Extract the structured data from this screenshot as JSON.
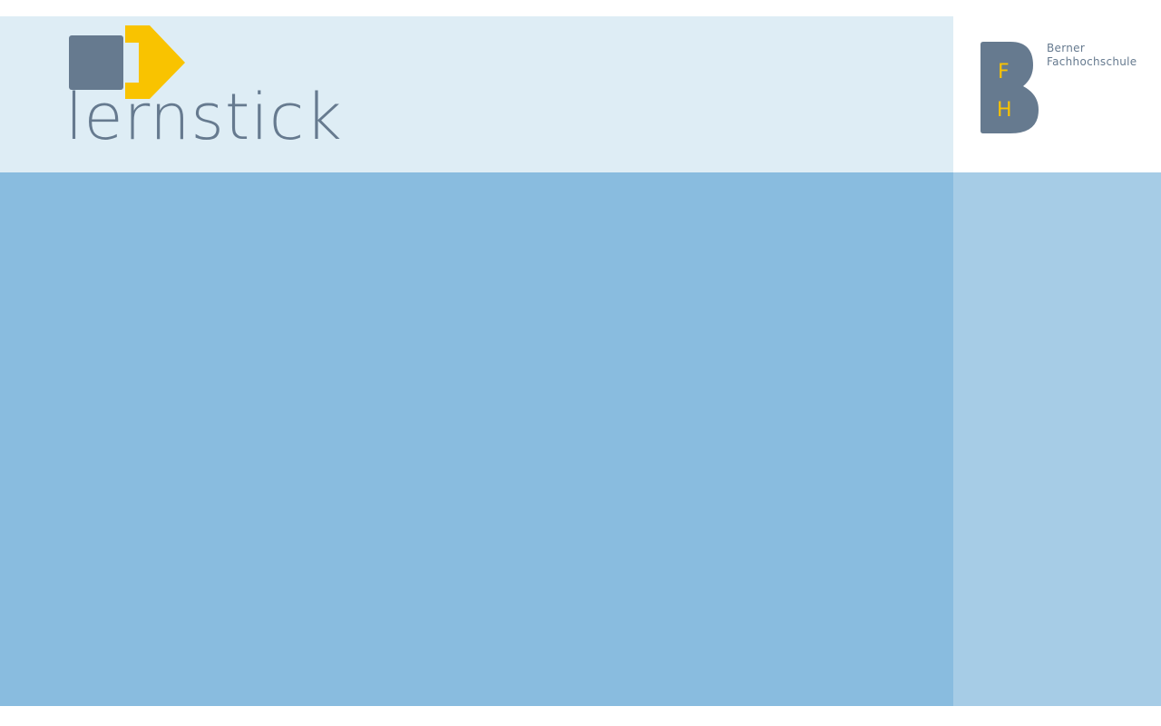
{
  "branding": {
    "product_name": "lernstick",
    "institution_line1": "Berner",
    "institution_line2": "Fachhochschule",
    "monogram_letter_1": "F",
    "monogram_letter_2": "H"
  },
  "icons": {
    "lernstick_mark": "lernstick-logo-icon",
    "bfh_mark": "bfh-logo-icon"
  },
  "colors": {
    "header_background": "#deedf5",
    "main_panel": "#89bcdf",
    "side_panel": "#a6cce6",
    "logo_slate": "#667a8f",
    "logo_yellow": "#f9c300",
    "text_slate": "#667a8f"
  }
}
